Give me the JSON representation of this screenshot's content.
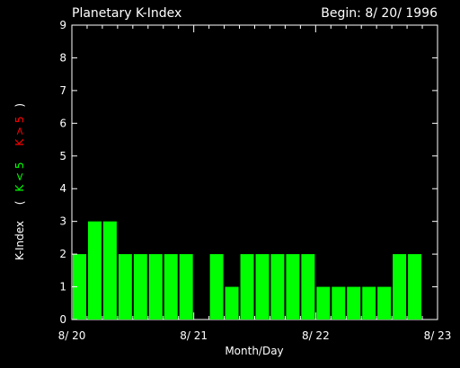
{
  "chart_data": {
    "type": "bar",
    "title": "Planetary K-Index",
    "subtitle": "Begin: 8/ 20/ 1996",
    "xlabel": "Month/Day",
    "ylabel_parts": {
      "main": "K-Index",
      "open": "(",
      "green": "K < 5",
      "red": "K > 5",
      "close": ")"
    },
    "ylim": [
      0,
      9
    ],
    "y_ticks": [
      "0",
      "1",
      "2",
      "3",
      "4",
      "5",
      "6",
      "7",
      "8",
      "9"
    ],
    "x_ticks": [
      "8/ 20",
      "8/ 21",
      "8/ 22",
      "8/ 23"
    ],
    "bins_per_day": 8,
    "days": 3,
    "values": [
      2,
      3,
      3,
      2,
      2,
      2,
      2,
      2,
      0,
      2,
      1,
      2,
      2,
      2,
      2,
      2,
      1,
      1,
      1,
      1,
      1,
      2,
      2,
      0
    ],
    "colors": {
      "low": "#00ff00",
      "high": "#ff0000",
      "axis": "#ffffff",
      "background": "#000000"
    }
  }
}
